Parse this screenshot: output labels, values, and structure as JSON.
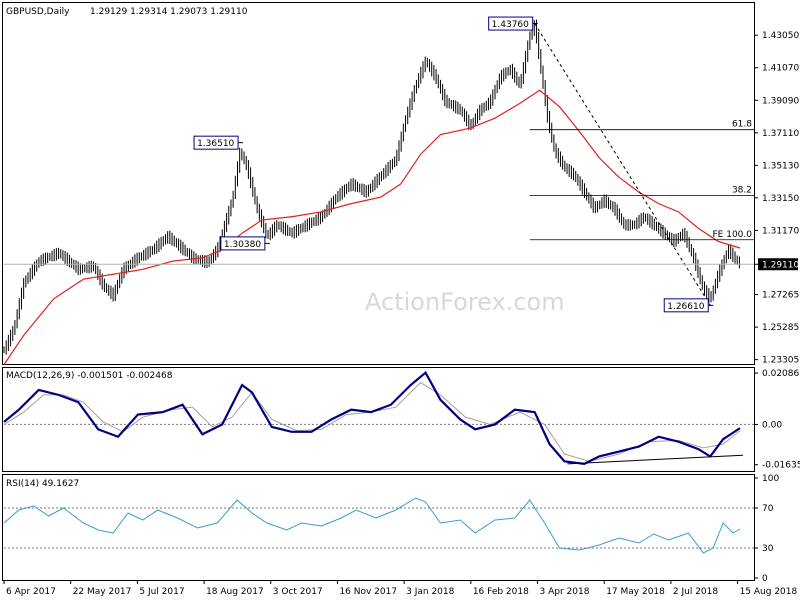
{
  "header": {
    "symbol": "GBPUSD,Daily",
    "ohlc": "1.29129 1.29314 1.29073 1.29110"
  },
  "watermark": "ActionForex.com",
  "colors": {
    "bars": "#000000",
    "ma": "#e02020",
    "macd_main": "#000080",
    "macd_signal": "#a0a0a0",
    "rsi": "#3a9bd6",
    "grid": "#888888",
    "axis": "#000000",
    "badge_border": "#000080"
  },
  "chart_data": [
    {
      "type": "candlestick",
      "name": "price",
      "yaxis_ticks": [
        "1.43050",
        "1.41070",
        "1.39090",
        "1.37110",
        "1.35130",
        "1.33150",
        "1.31170",
        "1.29110",
        "1.27265",
        "1.25285",
        "1.23305"
      ],
      "ylim": [
        1.231,
        1.4495
      ],
      "current_price": "1.29110",
      "x_ticks": [
        "6 Apr 2017",
        "22 May 2017",
        "5 Jul 2017",
        "18 Aug 2017",
        "3 Oct 2017",
        "16 Nov 2017",
        "3 Jan 2018",
        "16 Feb 2018",
        "3 Apr 2018",
        "17 May 2018",
        "2 Jul 2018",
        "15 Aug 2018"
      ],
      "price_path": [
        [
          0,
          1.239
        ],
        [
          10,
          1.252
        ],
        [
          20,
          1.28
        ],
        [
          35,
          1.293
        ],
        [
          55,
          1.298
        ],
        [
          75,
          1.288
        ],
        [
          90,
          1.29
        ],
        [
          100,
          1.278
        ],
        [
          110,
          1.272
        ],
        [
          120,
          1.288
        ],
        [
          135,
          1.295
        ],
        [
          150,
          1.3
        ],
        [
          165,
          1.308
        ],
        [
          175,
          1.303
        ],
        [
          190,
          1.295
        ],
        [
          205,
          1.292
        ],
        [
          215,
          1.3
        ],
        [
          230,
          1.33
        ],
        [
          238,
          1.36
        ],
        [
          245,
          1.35
        ],
        [
          255,
          1.325
        ],
        [
          265,
          1.308
        ],
        [
          275,
          1.315
        ],
        [
          290,
          1.31
        ],
        [
          305,
          1.315
        ],
        [
          320,
          1.32
        ],
        [
          335,
          1.332
        ],
        [
          350,
          1.34
        ],
        [
          365,
          1.335
        ],
        [
          380,
          1.345
        ],
        [
          395,
          1.355
        ],
        [
          405,
          1.38
        ],
        [
          415,
          1.4
        ],
        [
          425,
          1.415
        ],
        [
          435,
          1.405
        ],
        [
          445,
          1.39
        ],
        [
          460,
          1.385
        ],
        [
          470,
          1.375
        ],
        [
          480,
          1.385
        ],
        [
          490,
          1.39
        ],
        [
          500,
          1.405
        ],
        [
          510,
          1.41
        ],
        [
          520,
          1.4
        ],
        [
          530,
          1.43
        ],
        [
          535,
          1.437
        ],
        [
          540,
          1.415
        ],
        [
          548,
          1.38
        ],
        [
          555,
          1.36
        ],
        [
          565,
          1.35
        ],
        [
          575,
          1.345
        ],
        [
          585,
          1.335
        ],
        [
          595,
          1.325
        ],
        [
          605,
          1.33
        ],
        [
          615,
          1.325
        ],
        [
          625,
          1.315
        ],
        [
          635,
          1.315
        ],
        [
          645,
          1.32
        ],
        [
          655,
          1.315
        ],
        [
          665,
          1.31
        ],
        [
          675,
          1.305
        ],
        [
          685,
          1.31
        ],
        [
          695,
          1.295
        ],
        [
          705,
          1.276
        ],
        [
          712,
          1.27
        ],
        [
          720,
          1.285
        ],
        [
          730,
          1.3
        ],
        [
          736,
          1.295
        ],
        [
          742,
          1.2911
        ]
      ],
      "ma_path": [
        [
          0,
          1.23
        ],
        [
          20,
          1.248
        ],
        [
          50,
          1.27
        ],
        [
          80,
          1.282
        ],
        [
          110,
          1.285
        ],
        [
          140,
          1.288
        ],
        [
          170,
          1.293
        ],
        [
          200,
          1.295
        ],
        [
          220,
          1.3
        ],
        [
          240,
          1.31
        ],
        [
          260,
          1.318
        ],
        [
          290,
          1.32
        ],
        [
          320,
          1.323
        ],
        [
          350,
          1.328
        ],
        [
          380,
          1.332
        ],
        [
          400,
          1.34
        ],
        [
          420,
          1.358
        ],
        [
          440,
          1.37
        ],
        [
          470,
          1.374
        ],
        [
          495,
          1.38
        ],
        [
          520,
          1.389
        ],
        [
          540,
          1.397
        ],
        [
          560,
          1.387
        ],
        [
          580,
          1.372
        ],
        [
          600,
          1.356
        ],
        [
          620,
          1.344
        ],
        [
          640,
          1.335
        ],
        [
          660,
          1.328
        ],
        [
          680,
          1.323
        ],
        [
          700,
          1.313
        ],
        [
          720,
          1.305
        ],
        [
          742,
          1.301
        ]
      ],
      "annotations": [
        {
          "label": "1.43760",
          "price": 1.4376,
          "bar": "high"
        },
        {
          "label": "1.36510",
          "price": 1.3651,
          "bar": "high"
        },
        {
          "label": "1.30380",
          "price": 1.3038,
          "bar": "low"
        },
        {
          "label": "1.26610",
          "price": 1.2661,
          "bar": "low"
        }
      ],
      "fib_levels": [
        {
          "label": "61.8",
          "price": 1.373
        },
        {
          "label": "38.2",
          "price": 1.333
        },
        {
          "label": "FE 100.0",
          "price": 1.306
        }
      ]
    },
    {
      "type": "line",
      "name": "macd",
      "title": "MACD(12,26,9) -0.001501 -0.002468",
      "yaxis_ticks": [
        "0.020861",
        "0.00",
        "-0.016357"
      ],
      "ylim": [
        -0.0185,
        0.0225
      ],
      "main_path": [
        [
          0,
          0.001
        ],
        [
          15,
          0.006
        ],
        [
          35,
          0.014
        ],
        [
          55,
          0.012
        ],
        [
          75,
          0.009
        ],
        [
          95,
          -0.002
        ],
        [
          115,
          -0.005
        ],
        [
          135,
          0.004
        ],
        [
          160,
          0.005
        ],
        [
          180,
          0.008
        ],
        [
          200,
          -0.004
        ],
        [
          220,
          0.0
        ],
        [
          240,
          0.016
        ],
        [
          250,
          0.013
        ],
        [
          270,
          -0.001
        ],
        [
          290,
          -0.003
        ],
        [
          310,
          -0.003
        ],
        [
          330,
          0.002
        ],
        [
          350,
          0.006
        ],
        [
          370,
          0.005
        ],
        [
          390,
          0.008
        ],
        [
          410,
          0.016
        ],
        [
          425,
          0.021
        ],
        [
          440,
          0.01
        ],
        [
          460,
          0.002
        ],
        [
          475,
          -0.002
        ],
        [
          495,
          0.0
        ],
        [
          515,
          0.006
        ],
        [
          535,
          0.005
        ],
        [
          550,
          -0.008
        ],
        [
          565,
          -0.015
        ],
        [
          585,
          -0.016
        ],
        [
          600,
          -0.013
        ],
        [
          620,
          -0.011
        ],
        [
          640,
          -0.009
        ],
        [
          660,
          -0.005
        ],
        [
          680,
          -0.007
        ],
        [
          700,
          -0.01
        ],
        [
          712,
          -0.013
        ],
        [
          725,
          -0.006
        ],
        [
          742,
          -0.0015
        ]
      ],
      "signal_path": [
        [
          0,
          0.0
        ],
        [
          20,
          0.005
        ],
        [
          40,
          0.012
        ],
        [
          60,
          0.012
        ],
        [
          80,
          0.009
        ],
        [
          100,
          0.001
        ],
        [
          120,
          -0.003
        ],
        [
          140,
          0.003
        ],
        [
          170,
          0.006
        ],
        [
          190,
          0.007
        ],
        [
          210,
          -0.001
        ],
        [
          230,
          0.003
        ],
        [
          250,
          0.013
        ],
        [
          270,
          0.002
        ],
        [
          295,
          -0.0025
        ],
        [
          320,
          -0.002
        ],
        [
          345,
          0.004
        ],
        [
          370,
          0.005
        ],
        [
          395,
          0.007
        ],
        [
          420,
          0.017
        ],
        [
          440,
          0.012
        ],
        [
          465,
          0.003
        ],
        [
          490,
          0.0
        ],
        [
          520,
          0.005
        ],
        [
          545,
          0.0
        ],
        [
          565,
          -0.012
        ],
        [
          590,
          -0.015
        ],
        [
          620,
          -0.012
        ],
        [
          650,
          -0.007
        ],
        [
          680,
          -0.0065
        ],
        [
          705,
          -0.0095
        ],
        [
          725,
          -0.008
        ],
        [
          742,
          -0.0025
        ]
      ],
      "trendline": [
        [
          568,
          -0.016
        ],
        [
          745,
          -0.0125
        ]
      ]
    },
    {
      "type": "line",
      "name": "rsi",
      "title": "RSI(14) 49.1627",
      "yaxis_ticks": [
        "100",
        "70",
        "30",
        "0"
      ],
      "levels": [
        70,
        30
      ],
      "ylim": [
        0,
        100
      ],
      "path": [
        [
          0,
          55
        ],
        [
          15,
          68
        ],
        [
          30,
          72
        ],
        [
          45,
          62
        ],
        [
          60,
          70
        ],
        [
          80,
          55
        ],
        [
          95,
          48
        ],
        [
          110,
          45
        ],
        [
          125,
          65
        ],
        [
          140,
          58
        ],
        [
          155,
          68
        ],
        [
          175,
          60
        ],
        [
          195,
          50
        ],
        [
          215,
          55
        ],
        [
          235,
          78
        ],
        [
          250,
          65
        ],
        [
          265,
          55
        ],
        [
          285,
          48
        ],
        [
          300,
          55
        ],
        [
          320,
          52
        ],
        [
          340,
          60
        ],
        [
          355,
          68
        ],
        [
          375,
          60
        ],
        [
          395,
          68
        ],
        [
          415,
          80
        ],
        [
          425,
          76
        ],
        [
          440,
          55
        ],
        [
          460,
          58
        ],
        [
          475,
          45
        ],
        [
          495,
          58
        ],
        [
          515,
          60
        ],
        [
          530,
          78
        ],
        [
          545,
          55
        ],
        [
          560,
          30
        ],
        [
          580,
          28
        ],
        [
          600,
          33
        ],
        [
          620,
          40
        ],
        [
          640,
          35
        ],
        [
          655,
          44
        ],
        [
          670,
          38
        ],
        [
          690,
          45
        ],
        [
          705,
          25
        ],
        [
          715,
          30
        ],
        [
          725,
          55
        ],
        [
          735,
          45
        ],
        [
          742,
          49
        ]
      ]
    }
  ]
}
